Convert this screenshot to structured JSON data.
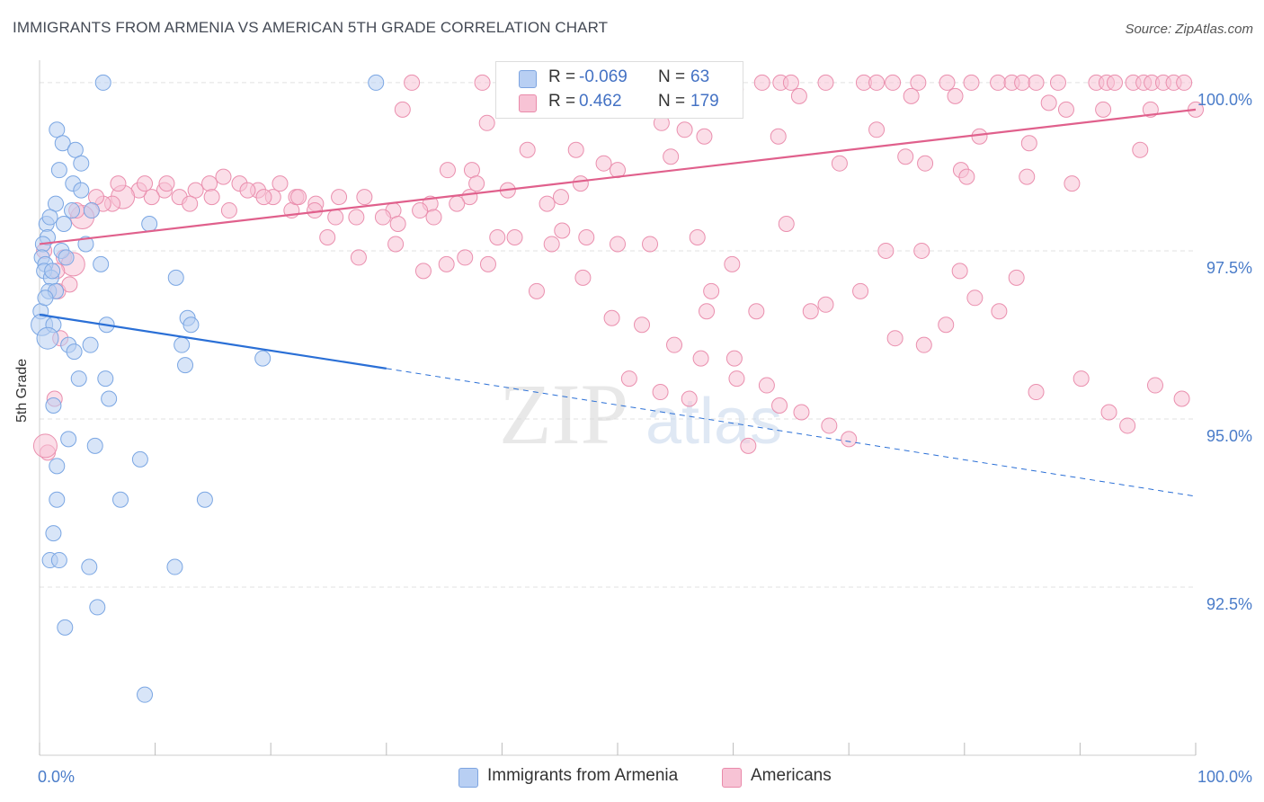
{
  "header": {
    "title": "IMMIGRANTS FROM ARMENIA VS AMERICAN 5TH GRADE CORRELATION CHART",
    "source": "Source: ZipAtlas.com"
  },
  "legend": {
    "r_label": "R =",
    "n_label": "N =",
    "rows": [
      {
        "r": "-0.069",
        "n": "63",
        "color": "#b8cff3",
        "border": "#7da4e0"
      },
      {
        "r": "0.462",
        "n": "179",
        "color": "#f7c3d5",
        "border": "#e98aaa"
      }
    ]
  },
  "watermark": {
    "zip": "ZIP",
    "atlas": "atlas"
  },
  "chart_data": {
    "type": "scatter",
    "title": "IMMIGRANTS FROM ARMENIA VS AMERICAN 5TH GRADE CORRELATION CHART",
    "xlabel": "",
    "ylabel": "5th Grade",
    "xlim": [
      0,
      100
    ],
    "ylim": [
      90.0,
      100.4
    ],
    "x_ticks": [
      "0.0%",
      "100.0%"
    ],
    "y_ticks": [
      {
        "value": 100.0,
        "label": "100.0%"
      },
      {
        "value": 97.5,
        "label": "97.5%"
      },
      {
        "value": 95.0,
        "label": "95.0%"
      },
      {
        "value": 92.5,
        "label": "92.5%"
      }
    ],
    "grid": true,
    "legend_position": "bottom",
    "series": [
      {
        "name": "Immigrants from Armenia",
        "color": "#7aa6e3",
        "fill": "#b8cff3",
        "trend": {
          "x1": 0,
          "y1": 96.55,
          "x2": 30,
          "y2": 95.75,
          "dash_to_x": 100,
          "dash_to_y": 93.85,
          "color": "#2a6fd6"
        },
        "points": [
          [
            5.5,
            100.0
          ],
          [
            29.1,
            100.0
          ],
          [
            1.5,
            99.3
          ],
          [
            2.0,
            99.1
          ],
          [
            3.1,
            99.0
          ],
          [
            1.7,
            98.7
          ],
          [
            3.6,
            98.8
          ],
          [
            2.9,
            98.5
          ],
          [
            3.6,
            98.4
          ],
          [
            1.4,
            98.2
          ],
          [
            2.8,
            98.1
          ],
          [
            4.5,
            98.1
          ],
          [
            0.6,
            97.9
          ],
          [
            0.9,
            98.0
          ],
          [
            2.1,
            97.9
          ],
          [
            9.5,
            97.9
          ],
          [
            0.7,
            97.7
          ],
          [
            0.3,
            97.6
          ],
          [
            4.0,
            97.6
          ],
          [
            1.9,
            97.5
          ],
          [
            2.3,
            97.4
          ],
          [
            0.2,
            97.4
          ],
          [
            0.5,
            97.3
          ],
          [
            5.3,
            97.3
          ],
          [
            0.4,
            97.2
          ],
          [
            1.0,
            97.1
          ],
          [
            11.8,
            97.1
          ],
          [
            0.8,
            96.9
          ],
          [
            1.4,
            96.9
          ],
          [
            0.1,
            96.6
          ],
          [
            0.2,
            96.4
          ],
          [
            1.2,
            96.4
          ],
          [
            5.8,
            96.4
          ],
          [
            12.8,
            96.5
          ],
          [
            13.1,
            96.4
          ],
          [
            0.7,
            96.2
          ],
          [
            2.5,
            96.1
          ],
          [
            4.4,
            96.1
          ],
          [
            12.3,
            96.1
          ],
          [
            12.6,
            95.8
          ],
          [
            19.3,
            95.9
          ],
          [
            3.4,
            95.6
          ],
          [
            5.7,
            95.6
          ],
          [
            1.2,
            95.2
          ],
          [
            2.5,
            94.7
          ],
          [
            4.8,
            94.6
          ],
          [
            8.7,
            94.4
          ],
          [
            1.5,
            94.3
          ],
          [
            1.5,
            93.8
          ],
          [
            7.0,
            93.8
          ],
          [
            14.3,
            93.8
          ],
          [
            1.2,
            93.3
          ],
          [
            0.9,
            92.9
          ],
          [
            1.7,
            92.9
          ],
          [
            4.3,
            92.8
          ],
          [
            11.7,
            92.8
          ],
          [
            5.0,
            92.2
          ],
          [
            2.2,
            91.9
          ],
          [
            9.1,
            90.9
          ],
          [
            0.5,
            96.8
          ],
          [
            1.1,
            97.2
          ],
          [
            3.0,
            96.0
          ],
          [
            6.0,
            95.3
          ]
        ]
      },
      {
        "name": "Americans",
        "color": "#ea8fae",
        "fill": "#f7c3d5",
        "trend": {
          "x1": 0,
          "y1": 97.6,
          "x2": 100,
          "y2": 99.6,
          "color": "#e0608c"
        },
        "points": [
          [
            32.2,
            100.0
          ],
          [
            38.3,
            100.0
          ],
          [
            45.6,
            100.0
          ],
          [
            49.0,
            100.0
          ],
          [
            52.9,
            100.0
          ],
          [
            58.7,
            100.0
          ],
          [
            62.5,
            100.0
          ],
          [
            64.1,
            100.0
          ],
          [
            65.0,
            100.0
          ],
          [
            68.0,
            100.0
          ],
          [
            71.3,
            100.0
          ],
          [
            72.4,
            100.0
          ],
          [
            73.8,
            100.0
          ],
          [
            76.0,
            100.0
          ],
          [
            78.5,
            100.0
          ],
          [
            80.6,
            100.0
          ],
          [
            82.9,
            100.0
          ],
          [
            84.1,
            100.0
          ],
          [
            85.0,
            100.0
          ],
          [
            86.2,
            100.0
          ],
          [
            88.1,
            100.0
          ],
          [
            91.4,
            100.0
          ],
          [
            92.3,
            100.0
          ],
          [
            93.0,
            100.0
          ],
          [
            94.6,
            100.0
          ],
          [
            95.5,
            100.0
          ],
          [
            96.2,
            100.0
          ],
          [
            97.2,
            100.0
          ],
          [
            98.1,
            100.0
          ],
          [
            99.0,
            100.0
          ],
          [
            60.2,
            99.9
          ],
          [
            65.7,
            99.8
          ],
          [
            75.4,
            99.8
          ],
          [
            79.2,
            99.8
          ],
          [
            87.3,
            99.7
          ],
          [
            88.8,
            99.6
          ],
          [
            92.0,
            99.6
          ],
          [
            96.1,
            99.6
          ],
          [
            100.0,
            99.6
          ],
          [
            31.4,
            99.6
          ],
          [
            38.7,
            99.4
          ],
          [
            53.8,
            99.4
          ],
          [
            55.8,
            99.3
          ],
          [
            57.5,
            99.2
          ],
          [
            63.9,
            99.2
          ],
          [
            72.4,
            99.3
          ],
          [
            81.3,
            99.2
          ],
          [
            85.6,
            99.1
          ],
          [
            95.2,
            99.0
          ],
          [
            42.2,
            99.0
          ],
          [
            46.4,
            99.0
          ],
          [
            54.6,
            98.9
          ],
          [
            69.2,
            98.8
          ],
          [
            74.9,
            98.9
          ],
          [
            76.6,
            98.8
          ],
          [
            79.7,
            98.7
          ],
          [
            80.2,
            98.6
          ],
          [
            85.4,
            98.6
          ],
          [
            89.3,
            98.5
          ],
          [
            35.3,
            98.7
          ],
          [
            37.4,
            98.7
          ],
          [
            48.8,
            98.8
          ],
          [
            50.0,
            98.7
          ],
          [
            46.8,
            98.5
          ],
          [
            45.1,
            98.3
          ],
          [
            43.9,
            98.2
          ],
          [
            40.5,
            98.4
          ],
          [
            37.2,
            98.3
          ],
          [
            33.8,
            98.2
          ],
          [
            30.6,
            98.1
          ],
          [
            28.1,
            98.3
          ],
          [
            25.6,
            98.0
          ],
          [
            23.9,
            98.2
          ],
          [
            21.8,
            98.1
          ],
          [
            20.2,
            98.3
          ],
          [
            18.9,
            98.4
          ],
          [
            17.3,
            98.5
          ],
          [
            15.9,
            98.6
          ],
          [
            14.7,
            98.5
          ],
          [
            13.5,
            98.4
          ],
          [
            12.1,
            98.3
          ],
          [
            10.8,
            98.4
          ],
          [
            9.7,
            98.3
          ],
          [
            8.6,
            98.4
          ],
          [
            7.2,
            98.3
          ],
          [
            6.3,
            98.2
          ],
          [
            5.5,
            98.2
          ],
          [
            4.5,
            98.1
          ],
          [
            3.7,
            98.0
          ],
          [
            4.9,
            98.3
          ],
          [
            6.8,
            98.5
          ],
          [
            9.1,
            98.5
          ],
          [
            11.0,
            98.5
          ],
          [
            13.0,
            98.2
          ],
          [
            14.9,
            98.3
          ],
          [
            16.4,
            98.1
          ],
          [
            18.0,
            98.4
          ],
          [
            19.4,
            98.3
          ],
          [
            20.8,
            98.5
          ],
          [
            22.2,
            98.3
          ],
          [
            23.8,
            98.1
          ],
          [
            25.9,
            98.3
          ],
          [
            27.4,
            98.0
          ],
          [
            29.7,
            98.0
          ],
          [
            31.0,
            97.9
          ],
          [
            32.9,
            98.1
          ],
          [
            34.1,
            98.0
          ],
          [
            36.1,
            98.2
          ],
          [
            37.8,
            98.5
          ],
          [
            39.6,
            97.7
          ],
          [
            41.1,
            97.7
          ],
          [
            44.3,
            97.6
          ],
          [
            45.2,
            97.8
          ],
          [
            47.3,
            97.7
          ],
          [
            50.0,
            97.6
          ],
          [
            52.8,
            97.6
          ],
          [
            56.9,
            97.7
          ],
          [
            58.1,
            96.9
          ],
          [
            59.9,
            97.3
          ],
          [
            57.7,
            96.6
          ],
          [
            62.0,
            96.6
          ],
          [
            64.6,
            97.9
          ],
          [
            66.7,
            96.6
          ],
          [
            68.0,
            96.7
          ],
          [
            71.0,
            96.9
          ],
          [
            73.2,
            97.5
          ],
          [
            76.3,
            97.5
          ],
          [
            79.6,
            97.2
          ],
          [
            84.5,
            97.1
          ],
          [
            35.2,
            97.3
          ],
          [
            22.4,
            98.3
          ],
          [
            24.9,
            97.7
          ],
          [
            27.6,
            97.4
          ],
          [
            30.8,
            97.6
          ],
          [
            33.2,
            97.2
          ],
          [
            36.8,
            97.4
          ],
          [
            38.8,
            97.3
          ],
          [
            43.0,
            96.9
          ],
          [
            47.0,
            97.1
          ],
          [
            49.5,
            96.5
          ],
          [
            52.1,
            96.4
          ],
          [
            54.9,
            96.1
          ],
          [
            57.2,
            95.9
          ],
          [
            60.3,
            95.6
          ],
          [
            64.0,
            95.2
          ],
          [
            65.9,
            95.1
          ],
          [
            68.3,
            94.9
          ],
          [
            70.0,
            94.7
          ],
          [
            74.0,
            96.2
          ],
          [
            76.5,
            96.1
          ],
          [
            78.4,
            96.4
          ],
          [
            80.9,
            96.8
          ],
          [
            83.0,
            96.6
          ],
          [
            86.2,
            95.4
          ],
          [
            90.1,
            95.6
          ],
          [
            92.5,
            95.1
          ],
          [
            94.1,
            94.9
          ],
          [
            96.5,
            95.5
          ],
          [
            98.8,
            95.3
          ],
          [
            60.1,
            95.9
          ],
          [
            62.9,
            95.5
          ],
          [
            61.3,
            94.6
          ],
          [
            53.7,
            95.4
          ],
          [
            51.0,
            95.6
          ],
          [
            56.2,
            95.3
          ],
          [
            2.1,
            97.4
          ],
          [
            1.6,
            96.9
          ],
          [
            0.4,
            97.5
          ],
          [
            2.9,
            97.3
          ],
          [
            1.8,
            96.2
          ],
          [
            1.3,
            95.3
          ],
          [
            0.7,
            94.5
          ],
          [
            0.5,
            94.6
          ],
          [
            3.2,
            98.1
          ],
          [
            1.5,
            97.2
          ],
          [
            2.6,
            97.0
          ]
        ]
      }
    ]
  },
  "bottom_legend": [
    {
      "label": "Immigrants from Armenia",
      "color": "#b8cff3",
      "border": "#7da4e0"
    },
    {
      "label": "Americans",
      "color": "#f7c3d5",
      "border": "#e98aaa"
    }
  ]
}
